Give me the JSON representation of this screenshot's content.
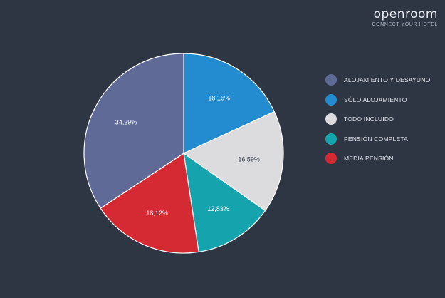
{
  "brand": {
    "name": "openroom",
    "tagline": "CONNECT YOUR HOTEL"
  },
  "chart_data": {
    "type": "pie",
    "title": "",
    "slices": [
      {
        "label": "SÓLO ALOJAMIENTO",
        "value": 18.16,
        "display": "18,16%",
        "color": "#238bcf"
      },
      {
        "label": "TODO INCLUIDO",
        "value": 16.59,
        "display": "16,59%",
        "color": "#dcdcdf"
      },
      {
        "label": "PENSIÓN COMPLETA",
        "value": 12.83,
        "display": "12,83%",
        "color": "#15a4ad"
      },
      {
        "label": "MEDIA PENSIÓN",
        "value": 18.12,
        "display": "18,12%",
        "color": "#d52a33"
      },
      {
        "label": "ALOJAMIENTO Y DESAYUNO",
        "value": 34.29,
        "display": "34,29%",
        "color": "#5f6a96"
      }
    ],
    "start": "12 o'clock",
    "direction": "clockwise",
    "legend_position": "right",
    "legend": [
      {
        "label": "ALOJAMIENTO Y DESAYUNO",
        "color": "#5f6a96"
      },
      {
        "label": "SÓLO ALOJAMIENTO",
        "color": "#238bcf"
      },
      {
        "label": "TODO INCLUIDO",
        "color": "#dcdcdf"
      },
      {
        "label": "PENSIÓN COMPLETA",
        "color": "#15a4ad"
      },
      {
        "label": "MEDIA PENSIÓN",
        "color": "#d52a33"
      }
    ]
  }
}
